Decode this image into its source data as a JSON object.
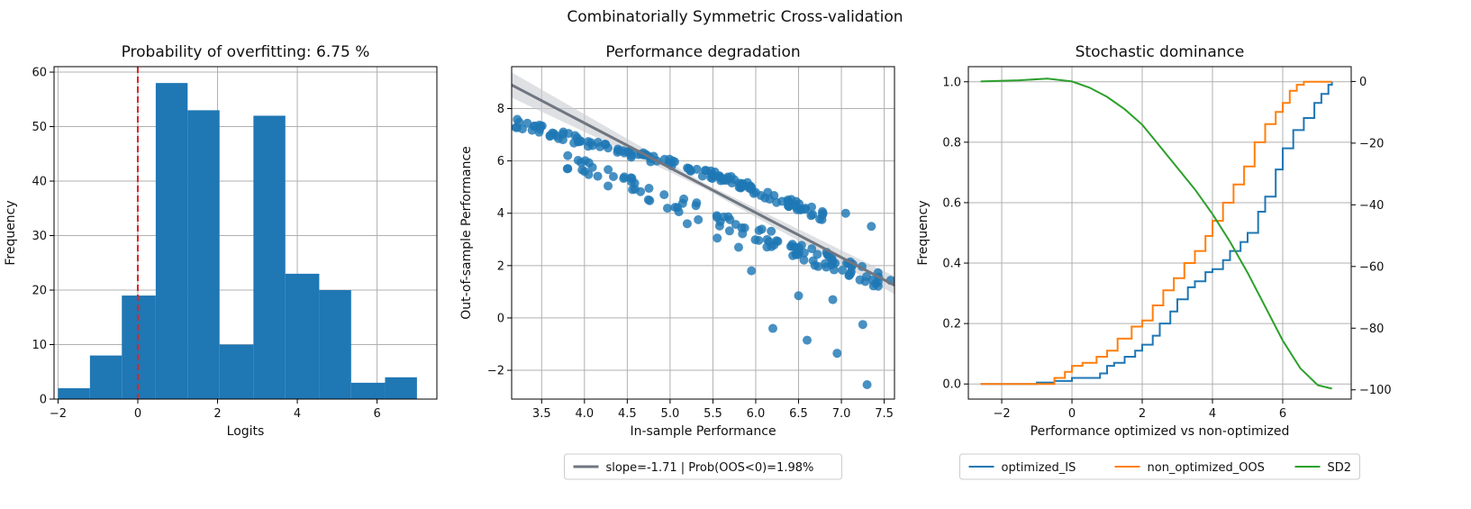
{
  "figure": {
    "title": "Combinatorially Symmetric Cross-validation"
  },
  "chart_data": [
    {
      "type": "bar",
      "title": "Probability of overfitting: 6.75 %",
      "xlabel": "Logits",
      "ylabel": "Frequency",
      "xlim": [
        -2.1,
        7.5
      ],
      "ylim": [
        0,
        61
      ],
      "xticks": [
        -2,
        0,
        2,
        4,
        6
      ],
      "yticks": [
        0,
        10,
        20,
        30,
        40,
        50,
        60
      ],
      "grid": true,
      "color": "#1f77b4",
      "bins": [
        {
          "x0": -2.0,
          "x1": -1.2,
          "count": 2
        },
        {
          "x0": -1.2,
          "x1": -0.4,
          "count": 8
        },
        {
          "x0": -0.4,
          "x1": 0.45,
          "count": 19
        },
        {
          "x0": 0.45,
          "x1": 1.25,
          "count": 58
        },
        {
          "x0": 1.25,
          "x1": 2.05,
          "count": 53
        },
        {
          "x0": 2.05,
          "x1": 2.9,
          "count": 10
        },
        {
          "x0": 2.9,
          "x1": 3.7,
          "count": 52
        },
        {
          "x0": 3.7,
          "x1": 4.55,
          "count": 23
        },
        {
          "x0": 4.55,
          "x1": 5.35,
          "count": 20
        },
        {
          "x0": 5.35,
          "x1": 6.2,
          "count": 3
        },
        {
          "x0": 6.2,
          "x1": 7.0,
          "count": 4
        }
      ],
      "reference_line": {
        "x": 0,
        "color": "#d62728",
        "style": "dashed"
      }
    },
    {
      "type": "scatter",
      "title": "Performance degradation",
      "xlabel": "In-sample Performance",
      "ylabel": "Out-of-sample Performance",
      "xlim": [
        3.15,
        7.62
      ],
      "ylim": [
        -3.1,
        9.6
      ],
      "xticks": [
        3.5,
        4.0,
        4.5,
        5.0,
        5.5,
        6.0,
        6.5,
        7.0,
        7.5
      ],
      "xtick_labels": [
        "3.5",
        "4.0",
        "4.5",
        "5.0",
        "5.5",
        "6.0",
        "6.5",
        "7.0",
        "7.5"
      ],
      "yticks": [
        -2,
        0,
        2,
        4,
        6,
        8
      ],
      "grid": true,
      "point_color": "#1f77b4",
      "line_color": "#6f7680",
      "regression": {
        "x0": 3.15,
        "y0": 8.9,
        "x1": 7.62,
        "y1": 1.25
      },
      "legend": "slope=-1.71 | Prob(OOS<0)=1.98%",
      "legend_position": "below"
    },
    {
      "type": "line",
      "title": "Stochastic dominance",
      "xlabel": "Performance optimized vs non-optimized",
      "ylabel": "Frequency",
      "xlim": [
        -2.95,
        7.95
      ],
      "ylim": [
        -0.05,
        1.05
      ],
      "y2lim": [
        -103,
        4.8
      ],
      "xticks": [
        -2,
        0,
        2,
        4,
        6
      ],
      "yticks": [
        0.0,
        0.2,
        0.4,
        0.6,
        0.8,
        1.0
      ],
      "ytick_labels": [
        "0.0",
        "0.2",
        "0.4",
        "0.6",
        "0.8",
        "1.0"
      ],
      "y2ticks": [
        0,
        -20,
        -40,
        -60,
        -80,
        -100
      ],
      "grid": true,
      "legend_position": "below",
      "series": [
        {
          "name": "optimized_IS",
          "color": "#1f77b4",
          "axis": "left",
          "points": [
            [
              -2.6,
              0.0
            ],
            [
              -1.0,
              0.005
            ],
            [
              -0.5,
              0.01
            ],
            [
              0.0,
              0.02
            ],
            [
              0.5,
              0.02
            ],
            [
              0.8,
              0.035
            ],
            [
              1.0,
              0.06
            ],
            [
              1.2,
              0.07
            ],
            [
              1.5,
              0.09
            ],
            [
              1.8,
              0.11
            ],
            [
              2.0,
              0.13
            ],
            [
              2.3,
              0.16
            ],
            [
              2.5,
              0.2
            ],
            [
              2.8,
              0.24
            ],
            [
              3.0,
              0.28
            ],
            [
              3.3,
              0.32
            ],
            [
              3.5,
              0.34
            ],
            [
              3.8,
              0.37
            ],
            [
              4.0,
              0.38
            ],
            [
              4.3,
              0.41
            ],
            [
              4.5,
              0.44
            ],
            [
              4.8,
              0.47
            ],
            [
              5.0,
              0.5
            ],
            [
              5.3,
              0.57
            ],
            [
              5.5,
              0.62
            ],
            [
              5.8,
              0.71
            ],
            [
              6.0,
              0.78
            ],
            [
              6.3,
              0.84
            ],
            [
              6.6,
              0.88
            ],
            [
              6.9,
              0.93
            ],
            [
              7.1,
              0.96
            ],
            [
              7.3,
              0.99
            ],
            [
              7.4,
              1.0
            ]
          ]
        },
        {
          "name": "non_optimized_OOS",
          "color": "#ff7f0e",
          "axis": "left",
          "points": [
            [
              -2.6,
              0.0
            ],
            [
              -0.8,
              0.0
            ],
            [
              -0.5,
              0.02
            ],
            [
              -0.2,
              0.04
            ],
            [
              0.0,
              0.06
            ],
            [
              0.3,
              0.07
            ],
            [
              0.7,
              0.09
            ],
            [
              1.0,
              0.11
            ],
            [
              1.3,
              0.15
            ],
            [
              1.7,
              0.19
            ],
            [
              2.0,
              0.21
            ],
            [
              2.3,
              0.26
            ],
            [
              2.6,
              0.31
            ],
            [
              2.9,
              0.35
            ],
            [
              3.2,
              0.4
            ],
            [
              3.5,
              0.44
            ],
            [
              3.8,
              0.49
            ],
            [
              4.0,
              0.54
            ],
            [
              4.3,
              0.6
            ],
            [
              4.6,
              0.66
            ],
            [
              4.9,
              0.72
            ],
            [
              5.2,
              0.8
            ],
            [
              5.5,
              0.86
            ],
            [
              5.8,
              0.9
            ],
            [
              6.0,
              0.93
            ],
            [
              6.2,
              0.97
            ],
            [
              6.4,
              0.99
            ],
            [
              6.6,
              1.0
            ],
            [
              7.4,
              1.0
            ]
          ]
        },
        {
          "name": "SD2",
          "color": "#2ca02c",
          "axis": "right",
          "points": [
            [
              -2.6,
              0.0
            ],
            [
              -1.5,
              0.4
            ],
            [
              -0.7,
              0.9
            ],
            [
              0.0,
              0.0
            ],
            [
              0.5,
              -2.0
            ],
            [
              1.0,
              -5.0
            ],
            [
              1.5,
              -9.0
            ],
            [
              2.0,
              -14.0
            ],
            [
              2.5,
              -21.0
            ],
            [
              3.0,
              -28.0
            ],
            [
              3.5,
              -35.0
            ],
            [
              4.0,
              -43.0
            ],
            [
              4.5,
              -52.0
            ],
            [
              5.0,
              -62.0
            ],
            [
              5.5,
              -73.0
            ],
            [
              6.0,
              -84.0
            ],
            [
              6.5,
              -93.0
            ],
            [
              7.0,
              -98.5
            ],
            [
              7.4,
              -99.6
            ]
          ]
        }
      ]
    }
  ]
}
